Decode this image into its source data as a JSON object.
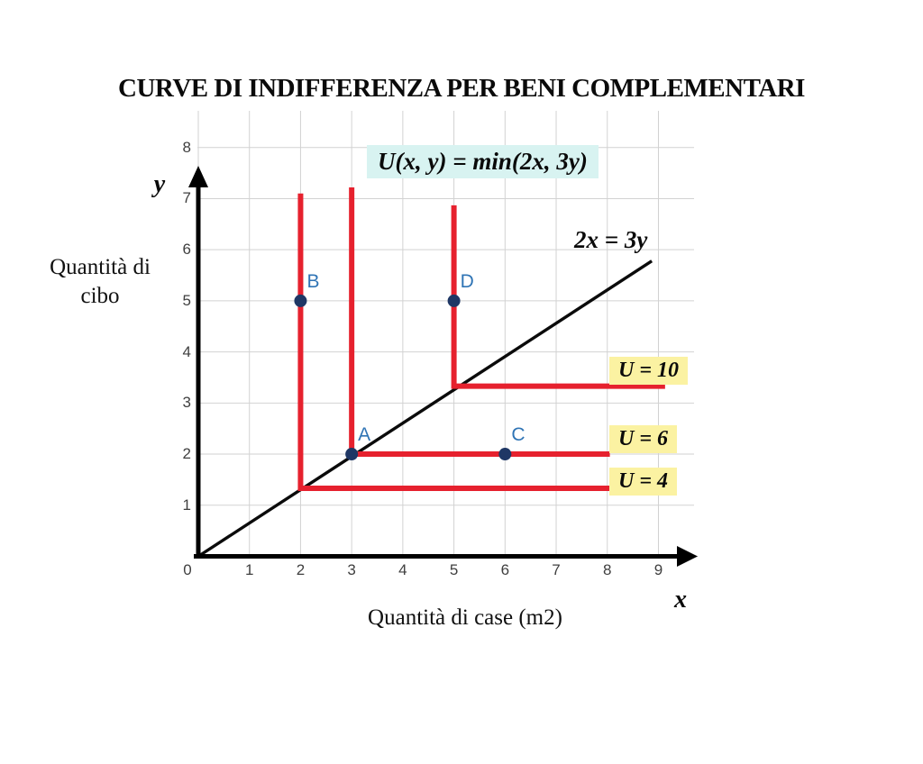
{
  "title": "CURVE DI INDIFFERENZA PER BENI COMPLEMENTARI",
  "colors": {
    "curve_red": "#e6212e",
    "point_navy": "#1f3765",
    "label_blue": "#2f74b5",
    "hl_cyan": "#d8f3f1",
    "hl_yellow": "#fbf2a2",
    "grid_gray": "#d2d2d2",
    "axis_black": "#000000"
  },
  "chart_data": {
    "type": "line",
    "title": "CURVE DI INDIFFERENZA PER BENI COMPLEMENTARI",
    "formula": "U(x, y) = min(2x, 3y)",
    "xlabel": "Quantità di case (m2)",
    "ylabel": "Quantità di cibo",
    "x_letter": "x",
    "y_letter": "y",
    "xlim": [
      0,
      9.5
    ],
    "ylim": [
      0,
      8.6
    ],
    "x_ticks": [
      0,
      1,
      2,
      3,
      4,
      5,
      6,
      7,
      8,
      9
    ],
    "y_ticks": [
      1,
      2,
      3,
      4,
      5,
      6,
      7,
      8
    ],
    "grid": true,
    "legend_position": "none",
    "diagonal": {
      "label": "2x = 3y",
      "from": [
        0,
        0
      ],
      "to": [
        8.87,
        5.78
      ]
    },
    "indifference_curves": [
      {
        "label": "U = 4",
        "utility": 4,
        "corner": [
          2,
          1.33
        ],
        "y_top": 7.1,
        "x_end": 8.05
      },
      {
        "label": "U = 6",
        "utility": 6,
        "corner": [
          3,
          2
        ],
        "y_top": 7.22,
        "x_end": 8.05
      },
      {
        "label": "U = 10",
        "utility": 10,
        "corner": [
          5,
          3.33
        ],
        "y_top": 6.87,
        "x_end": 9.13
      }
    ],
    "points": [
      {
        "label": "A",
        "x": 3,
        "y": 2
      },
      {
        "label": "B",
        "x": 2,
        "y": 5
      },
      {
        "label": "C",
        "x": 6,
        "y": 2
      },
      {
        "label": "D",
        "x": 5,
        "y": 5
      }
    ]
  }
}
